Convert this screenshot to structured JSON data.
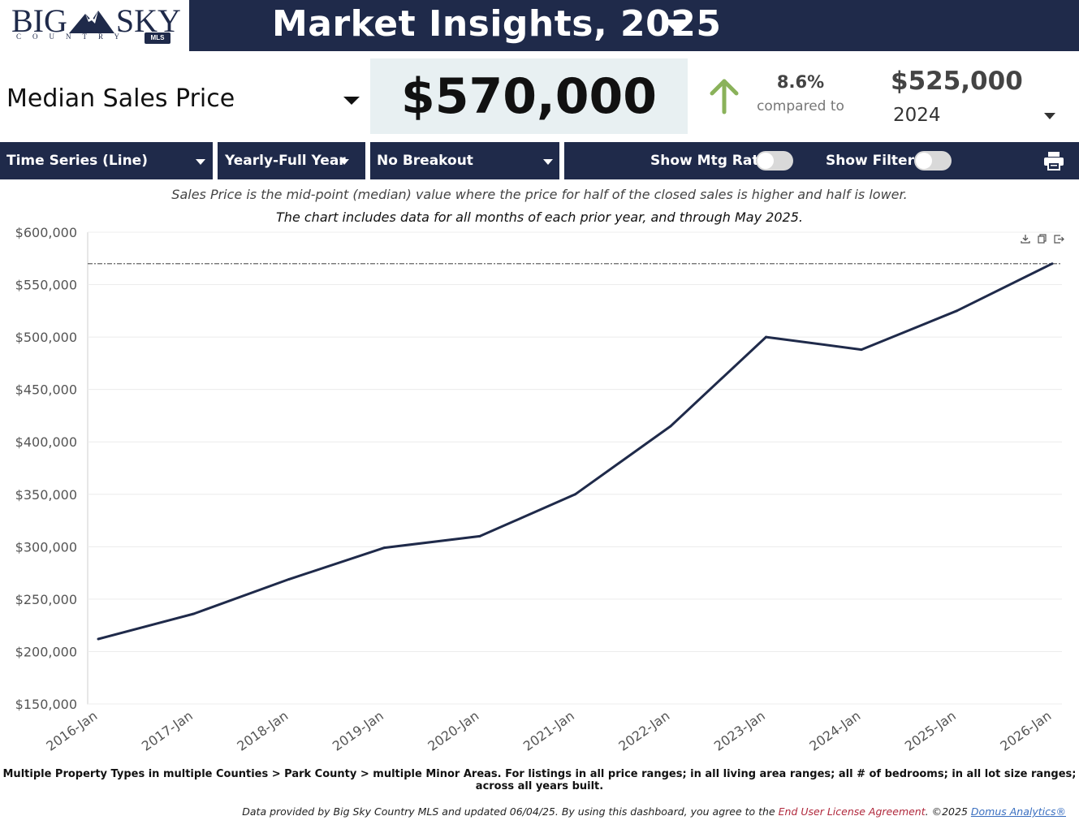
{
  "logo": {
    "line1": "BIG SKY",
    "line2": "COUNTRY",
    "badge": "MLS"
  },
  "header": {
    "title": "Market Insights, 2025"
  },
  "metric": {
    "label": "Median Sales Price",
    "value": "$570,000",
    "change_pct": "8.6%",
    "compared_to_label": "compared to",
    "compare_value": "$525,000",
    "compare_year": "2024"
  },
  "toolbar": {
    "chart_type": "Time Series (Line)",
    "period": "Yearly-Full Year",
    "breakout": "No Breakout",
    "mtg_rate_label": "Show Mtg Rate:",
    "filters_label": "Show Filters:",
    "print_icon": "printer-icon"
  },
  "notes": {
    "line1": "Sales Price is the mid-point (median) value where the price for half of the closed sales is higher and half is lower.",
    "line2": "The chart includes data for all months of each prior year, and through May 2025."
  },
  "chart_icons": [
    "download-icon",
    "copy-icon",
    "export-icon"
  ],
  "chart_data": {
    "type": "line",
    "categories": [
      "2016-Jan",
      "2017-Jan",
      "2018-Jan",
      "2019-Jan",
      "2020-Jan",
      "2021-Jan",
      "2022-Jan",
      "2023-Jan",
      "2024-Jan",
      "2025-Jan",
      "2026-Jan"
    ],
    "series": [
      {
        "values": [
          212000,
          236000,
          269000,
          299000,
          310000,
          350000,
          415000,
          500000,
          488000,
          525000,
          570000
        ]
      }
    ],
    "reference_line": 570000,
    "yticks": [
      "$150,000",
      "$200,000",
      "$250,000",
      "$300,000",
      "$350,000",
      "$400,000",
      "$450,000",
      "$500,000",
      "$550,000",
      "$600,000"
    ],
    "ylim": [
      150000,
      600000
    ],
    "grid": true,
    "line_color": "#1f2a4a"
  },
  "filters_text": "Multiple Property Types in multiple Counties > Park County > multiple Minor Areas. For listings in all price ranges; in all living area ranges; all # of bedrooms; in all lot size ranges; across all years built.",
  "footer": {
    "prefix": "Data provided by Big Sky Country MLS and updated 06/04/25.  By using this dashboard, you agree to the ",
    "eula": "End User License Agreement",
    "middle": ".  ©2025 ",
    "domus": "Domus Analytics®"
  }
}
